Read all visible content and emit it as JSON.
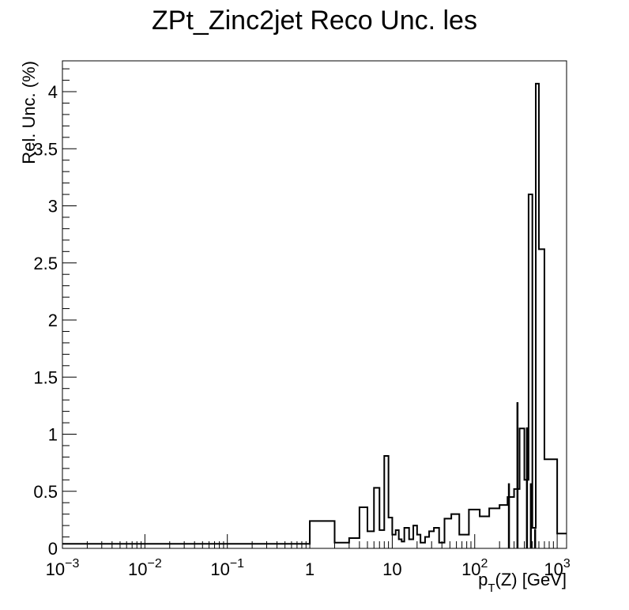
{
  "chart_data": {
    "type": "line",
    "title": "ZPt_Zinc2jet Reco Unc. les",
    "xlabel": {
      "main": "p",
      "sub": "T",
      "rest": "(Z) [GeV]"
    },
    "ylabel": "Rel. Unc. (%)",
    "xscale": "log",
    "xlim": [
      0.001,
      1300
    ],
    "ylim": [
      0,
      4.27
    ],
    "x_ticks": [
      {
        "value": 0.001,
        "base": "10",
        "exp": "−3"
      },
      {
        "value": 0.01,
        "base": "10",
        "exp": "−2"
      },
      {
        "value": 0.1,
        "base": "10",
        "exp": "−1"
      },
      {
        "value": 1,
        "base": "1",
        "exp": ""
      },
      {
        "value": 10,
        "base": "10",
        "exp": ""
      },
      {
        "value": 100,
        "base": "10",
        "exp": "2"
      },
      {
        "value": 1000,
        "base": "10",
        "exp": "3"
      }
    ],
    "y_ticks": [
      {
        "value": 0,
        "label": "0"
      },
      {
        "value": 0.5,
        "label": "0.5"
      },
      {
        "value": 1,
        "label": "1"
      },
      {
        "value": 1.5,
        "label": "1.5"
      },
      {
        "value": 2,
        "label": "2"
      },
      {
        "value": 2.5,
        "label": "2.5"
      },
      {
        "value": 3,
        "label": "3"
      },
      {
        "value": 3.5,
        "label": "3.5"
      },
      {
        "value": 4,
        "label": "4"
      }
    ],
    "grid": false,
    "legend": "none",
    "line_color": "#000000",
    "bin_edges": [
      0.001,
      1,
      2,
      3,
      4,
      5,
      6,
      7,
      8,
      9,
      10,
      11,
      12,
      13,
      14,
      16,
      18,
      20,
      22,
      25,
      28,
      32,
      37,
      43,
      52,
      65,
      85,
      115,
      150,
      200,
      250,
      300,
      350,
      400,
      450,
      500,
      550,
      600,
      700,
      1000,
      1300
    ],
    "values": [
      0.04,
      0.24,
      0.05,
      0.09,
      0.36,
      0.15,
      0.53,
      0.16,
      0.81,
      0.27,
      0.12,
      0.16,
      0.08,
      0.06,
      0.18,
      0.08,
      0.2,
      0.12,
      0.05,
      0.1,
      0.15,
      0.18,
      0.05,
      0.26,
      0.3,
      0.12,
      0.34,
      0.28,
      0.35,
      0.38,
      0.45,
      0.52,
      1.05,
      0.6,
      3.1,
      0.18,
      4.07,
      2.62,
      0.78,
      0.13
    ],
    "spikes": [
      {
        "x": 330,
        "y": 1.28
      },
      {
        "x": 430,
        "y": 1.06
      },
      {
        "x": 480,
        "y": 0.57
      },
      {
        "x": 540,
        "y": 0.17
      },
      {
        "x": 260,
        "y": 0.57
      }
    ]
  }
}
